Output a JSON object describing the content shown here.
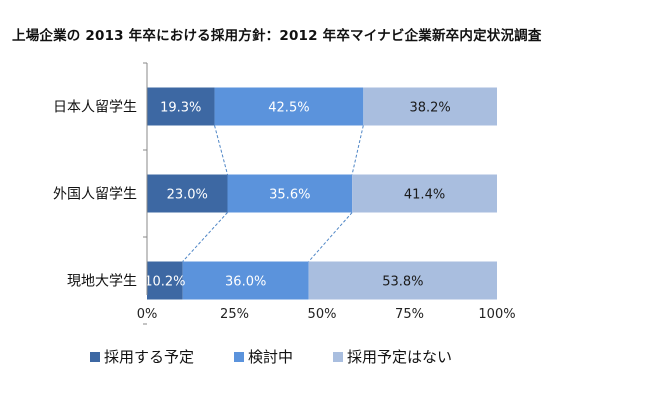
{
  "chart_data": {
    "type": "bar",
    "orientation": "horizontal",
    "stacked": true,
    "title": "上場企業の 2013 年卒における採用方針：2012 年卒マイナビ企業新卒内定状況調査",
    "categories": [
      "日本人留学生",
      "外国人留学生",
      "現地大学生"
    ],
    "series": [
      {
        "name": "採用する予定",
        "values": [
          19.3,
          23.0,
          10.2
        ],
        "labels": [
          "19.3%",
          "23.0%",
          "10.2%"
        ],
        "color": "#3d68a3"
      },
      {
        "name": "検討中",
        "values": [
          42.5,
          35.6,
          36.0
        ],
        "labels": [
          "42.5%",
          "35.6%",
          "36.0%"
        ],
        "color": "#5b93dc"
      },
      {
        "name": "採用予定はない",
        "values": [
          38.2,
          41.4,
          53.8
        ],
        "labels": [
          "38.2%",
          "41.4%",
          "53.8%"
        ],
        "color": "#a9bedf"
      }
    ],
    "xlim": [
      0,
      100
    ],
    "xticks": [
      "0%",
      "25%",
      "50%",
      "75%",
      "100%"
    ],
    "series_lines": true,
    "legend_position": "bottom",
    "grid": false
  }
}
